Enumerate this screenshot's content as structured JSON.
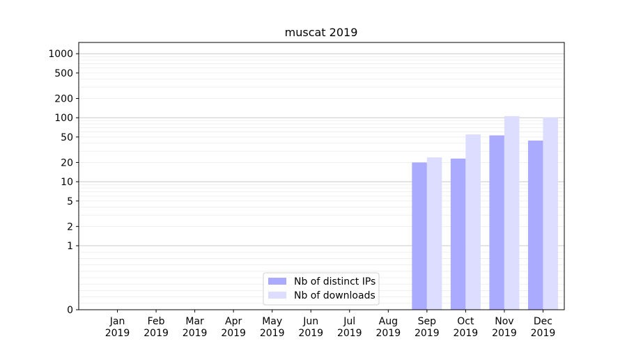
{
  "chart_data": {
    "type": "bar",
    "title": "muscat 2019",
    "xlabel": "",
    "ylabel": "",
    "y_scale": "symlog",
    "ylim": [
      0,
      1500
    ],
    "y_ticks": [
      0,
      1,
      2,
      5,
      10,
      20,
      50,
      100,
      200,
      500,
      1000
    ],
    "grid": true,
    "legend_position": "bottom-center",
    "categories": [
      [
        "Jan",
        "2019"
      ],
      [
        "Feb",
        "2019"
      ],
      [
        "Mar",
        "2019"
      ],
      [
        "Apr",
        "2019"
      ],
      [
        "May",
        "2019"
      ],
      [
        "Jun",
        "2019"
      ],
      [
        "Jul",
        "2019"
      ],
      [
        "Aug",
        "2019"
      ],
      [
        "Sep",
        "2019"
      ],
      [
        "Oct",
        "2019"
      ],
      [
        "Nov",
        "2019"
      ],
      [
        "Dec",
        "2019"
      ]
    ],
    "series": [
      {
        "name": "Nb of distinct IPs",
        "color": "#aaaaff",
        "values": [
          0,
          0,
          0,
          0,
          0,
          0,
          0,
          0,
          20,
          23,
          53,
          44
        ]
      },
      {
        "name": "Nb of downloads",
        "color": "#ddddff",
        "values": [
          0,
          0,
          0,
          0,
          0,
          0,
          0,
          0,
          24,
          55,
          106,
          101
        ]
      }
    ]
  }
}
